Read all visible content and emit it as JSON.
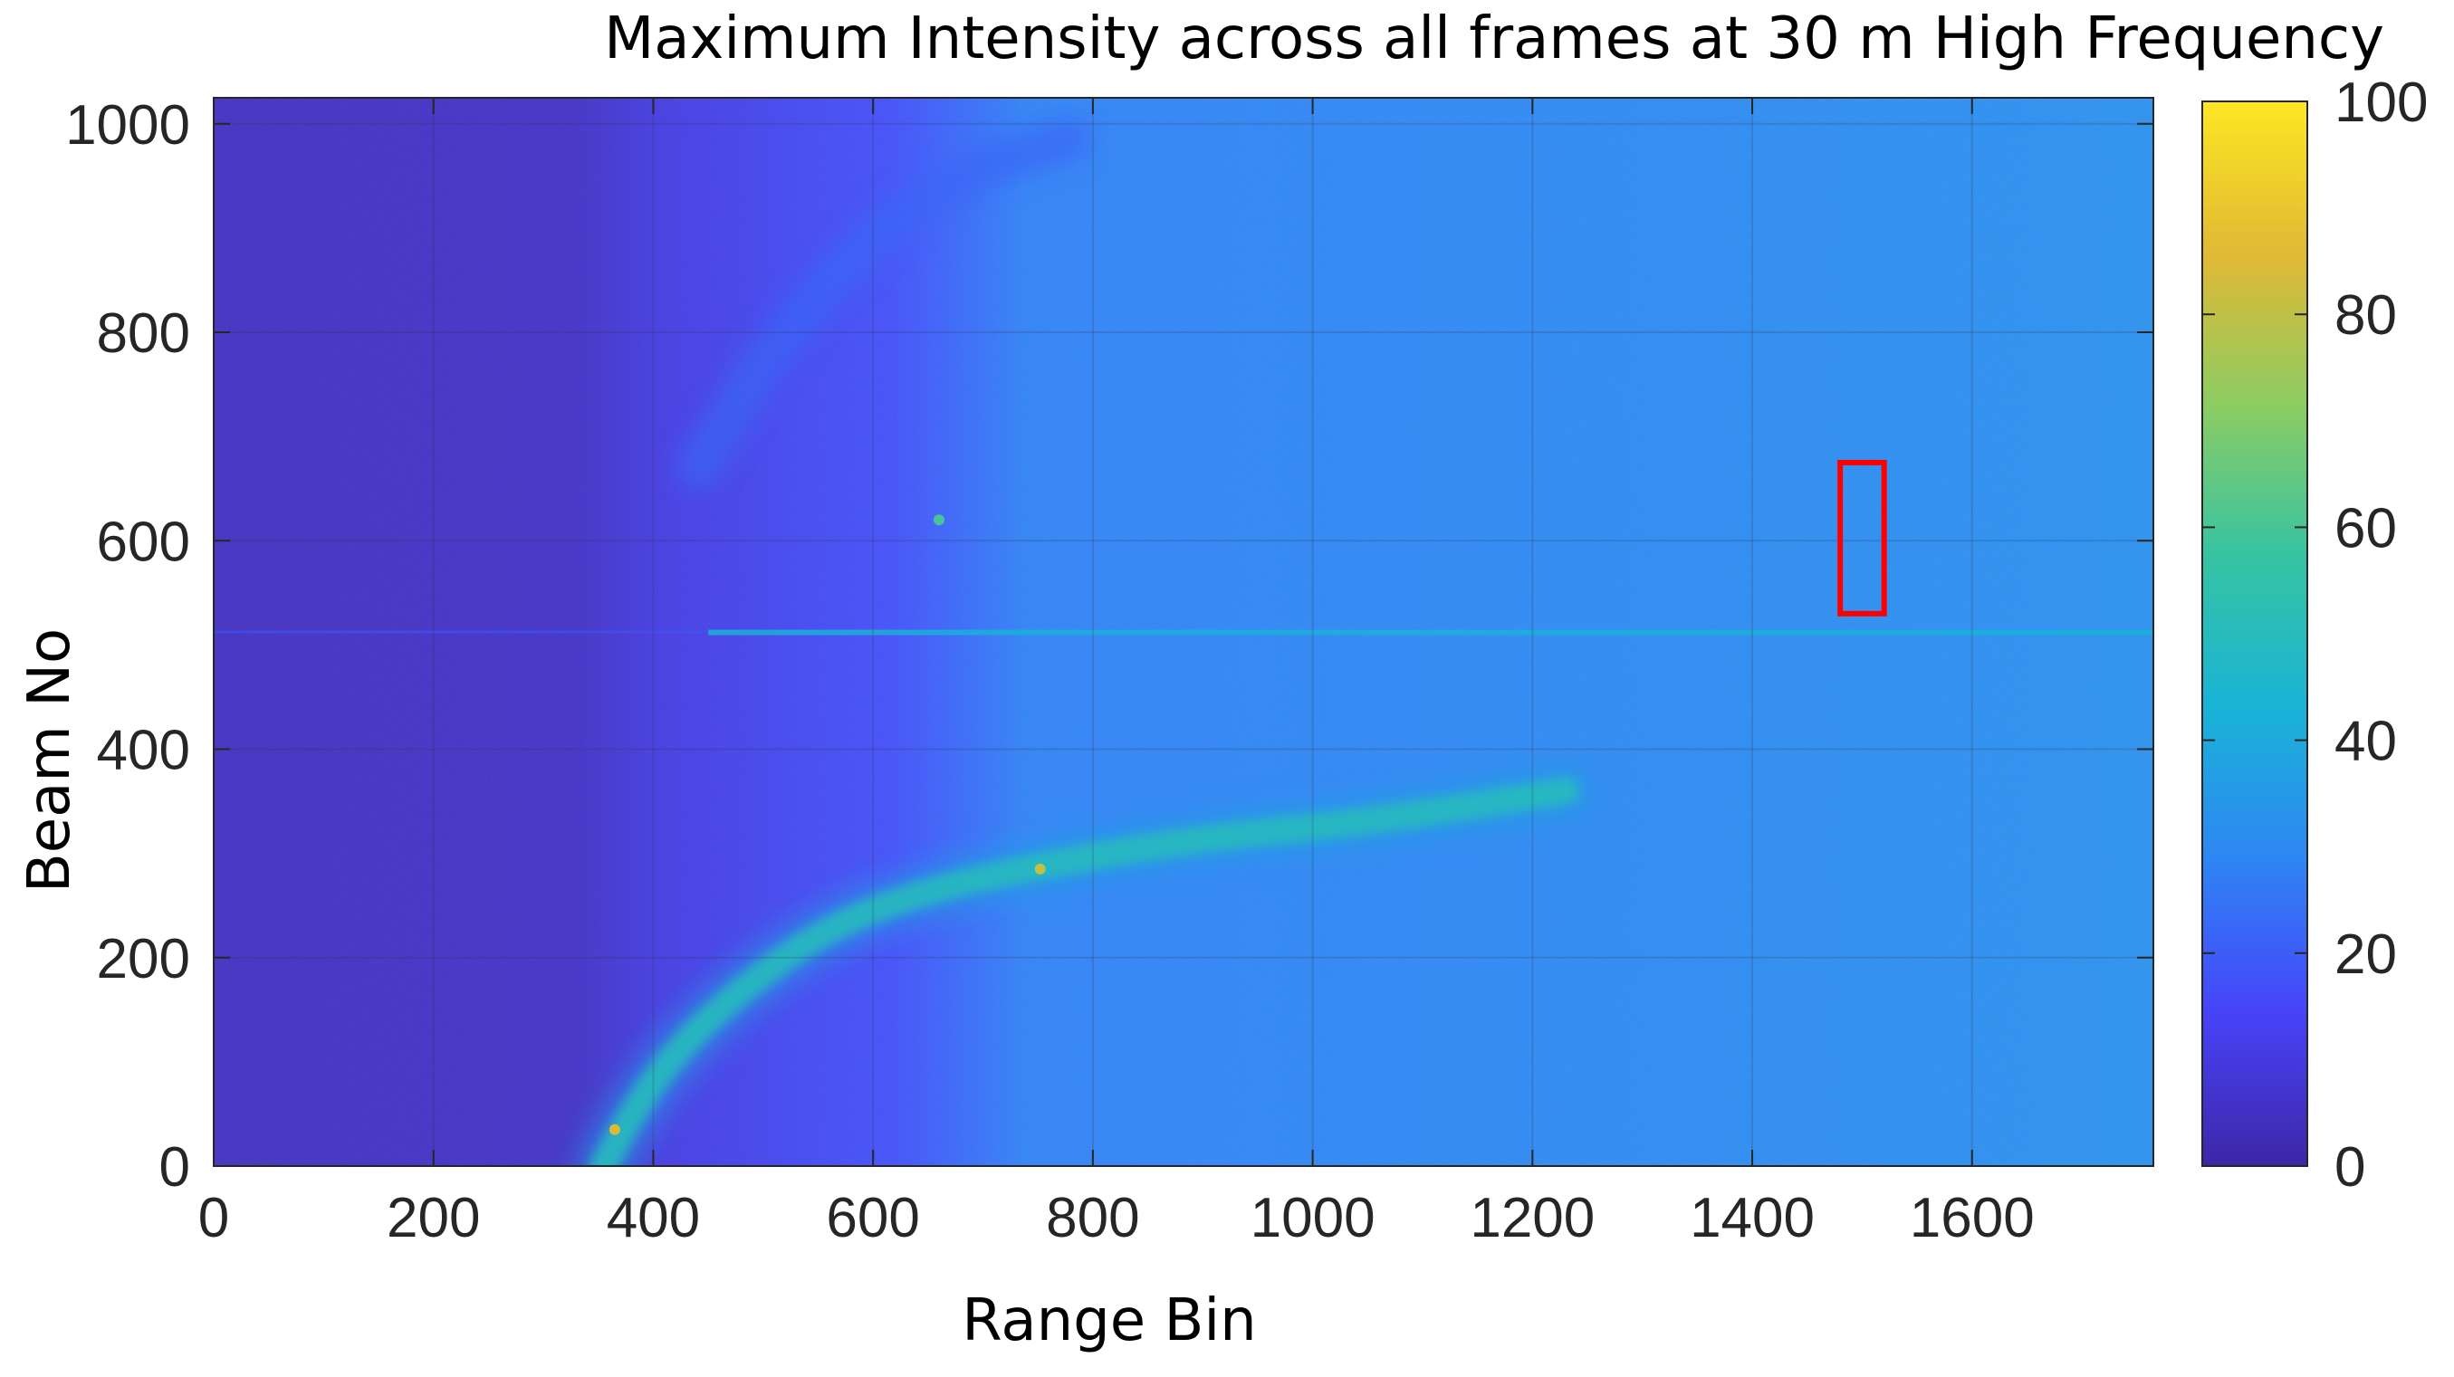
{
  "chart_data": {
    "type": "heatmap",
    "title": "Maximum Intensity across all frames at 30 m High Frequency",
    "xlabel": "Range Bin",
    "ylabel": "Beam No",
    "xlim": [
      0,
      1765
    ],
    "ylim": [
      0,
      1025
    ],
    "x_ticks": [
      0,
      200,
      400,
      600,
      800,
      1000,
      1200,
      1400,
      1600
    ],
    "y_ticks": [
      0,
      200,
      400,
      600,
      800,
      1000
    ],
    "colorbar": {
      "colormap": "parula",
      "clim": [
        0,
        100
      ],
      "ticks": [
        0,
        20,
        40,
        60,
        80,
        100
      ],
      "stops": [
        "#3e26a8",
        "#4743f8",
        "#2f84f4",
        "#19b3d7",
        "#36c3a3",
        "#8ccc63",
        "#e1b934",
        "#fde724"
      ]
    },
    "grid": true,
    "features": {
      "background": [
        {
          "range_bin_start": 0,
          "range_bin_end": 390,
          "intensity": 4
        },
        {
          "range_bin_start": 390,
          "range_bin_end": 700,
          "intensity": 14
        },
        {
          "range_bin_start": 700,
          "range_bin_end": 1765,
          "intensity": 32
        }
      ],
      "horizontal_line": {
        "beam_no": 512,
        "intensity": 42
      },
      "curved_band": {
        "points": [
          {
            "x": 355,
            "y": 0
          },
          {
            "x": 380,
            "y": 50
          },
          {
            "x": 420,
            "y": 110
          },
          {
            "x": 480,
            "y": 170
          },
          {
            "x": 560,
            "y": 230
          },
          {
            "x": 650,
            "y": 265
          },
          {
            "x": 760,
            "y": 290
          },
          {
            "x": 900,
            "y": 315
          },
          {
            "x": 1050,
            "y": 330
          },
          {
            "x": 1230,
            "y": 360
          }
        ],
        "intensity": 50
      },
      "upper_arc": {
        "points": [
          {
            "x": 440,
            "y": 670
          },
          {
            "x": 500,
            "y": 770
          },
          {
            "x": 560,
            "y": 850
          },
          {
            "x": 620,
            "y": 910
          },
          {
            "x": 700,
            "y": 960
          },
          {
            "x": 780,
            "y": 985
          }
        ],
        "intensity": 22
      },
      "hotspots": [
        {
          "x": 365,
          "y": 35,
          "intensity": 85
        },
        {
          "x": 752,
          "y": 285,
          "intensity": 80
        },
        {
          "x": 660,
          "y": 620,
          "intensity": 60
        }
      ]
    },
    "annotation_box": {
      "x_min": 1480,
      "x_max": 1520,
      "y_min": 530,
      "y_max": 675,
      "color": "#ff0000"
    }
  }
}
